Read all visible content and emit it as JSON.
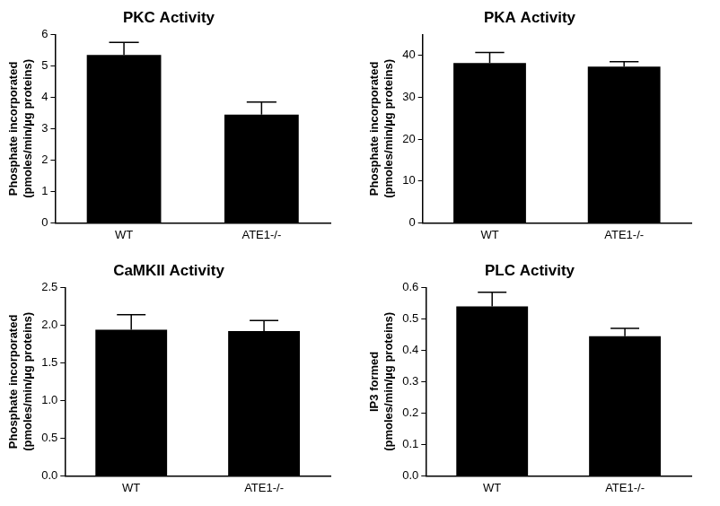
{
  "chart_data": [
    {
      "type": "bar",
      "title": "PKC Activity",
      "y_label": "Phosphate incorporated\n(pmoles/min/µg proteins)",
      "categories": [
        "WT",
        "ATE1-/-"
      ],
      "values": [
        5.35,
        3.45
      ],
      "errors": [
        0.4,
        0.4
      ],
      "color": "#000000",
      "ylim": [
        0,
        6
      ],
      "yticks": [
        0,
        1,
        2,
        3,
        4,
        5,
        6
      ],
      "grid": false
    },
    {
      "type": "bar",
      "title": "PKA Activity",
      "y_label": "Phosphate incorporated\n(pmoles/min/µg proteins)",
      "categories": [
        "WT",
        "ATE1-/-"
      ],
      "values": [
        38.2,
        37.3
      ],
      "errors": [
        2.5,
        1.2
      ],
      "color": "#000000",
      "ylim": [
        0,
        45
      ],
      "yticks": [
        0,
        10,
        20,
        30,
        40
      ],
      "grid": false
    },
    {
      "type": "bar",
      "title": "CaMKII Activity",
      "y_label": "Phosphate incorporated\n(pmoles/min/µg proteins)",
      "categories": [
        "WT",
        "ATE1-/-"
      ],
      "values": [
        1.94,
        1.92
      ],
      "errors": [
        0.2,
        0.14
      ],
      "color": "#000000",
      "ylim": [
        0,
        2.5
      ],
      "yticks": [
        {
          "value": 0,
          "label": "0.0"
        },
        0.5,
        {
          "value": 1,
          "label": "1.0"
        },
        1.5,
        {
          "value": 2,
          "label": "2.0"
        },
        2.5
      ],
      "grid": false
    },
    {
      "type": "bar",
      "title": "PLC Activity",
      "y_label": "IP3 formed\n(pmoles/min/µg proteins)",
      "categories": [
        "WT",
        "ATE1-/-"
      ],
      "values": [
        0.54,
        0.445
      ],
      "errors": [
        0.045,
        0.025
      ],
      "color": "#000000",
      "ylim": [
        0,
        0.6
      ],
      "yticks": [
        {
          "value": 0,
          "label": "0.0"
        },
        0.1,
        0.2,
        0.3,
        0.4,
        0.5,
        0.6
      ],
      "grid": false
    }
  ]
}
